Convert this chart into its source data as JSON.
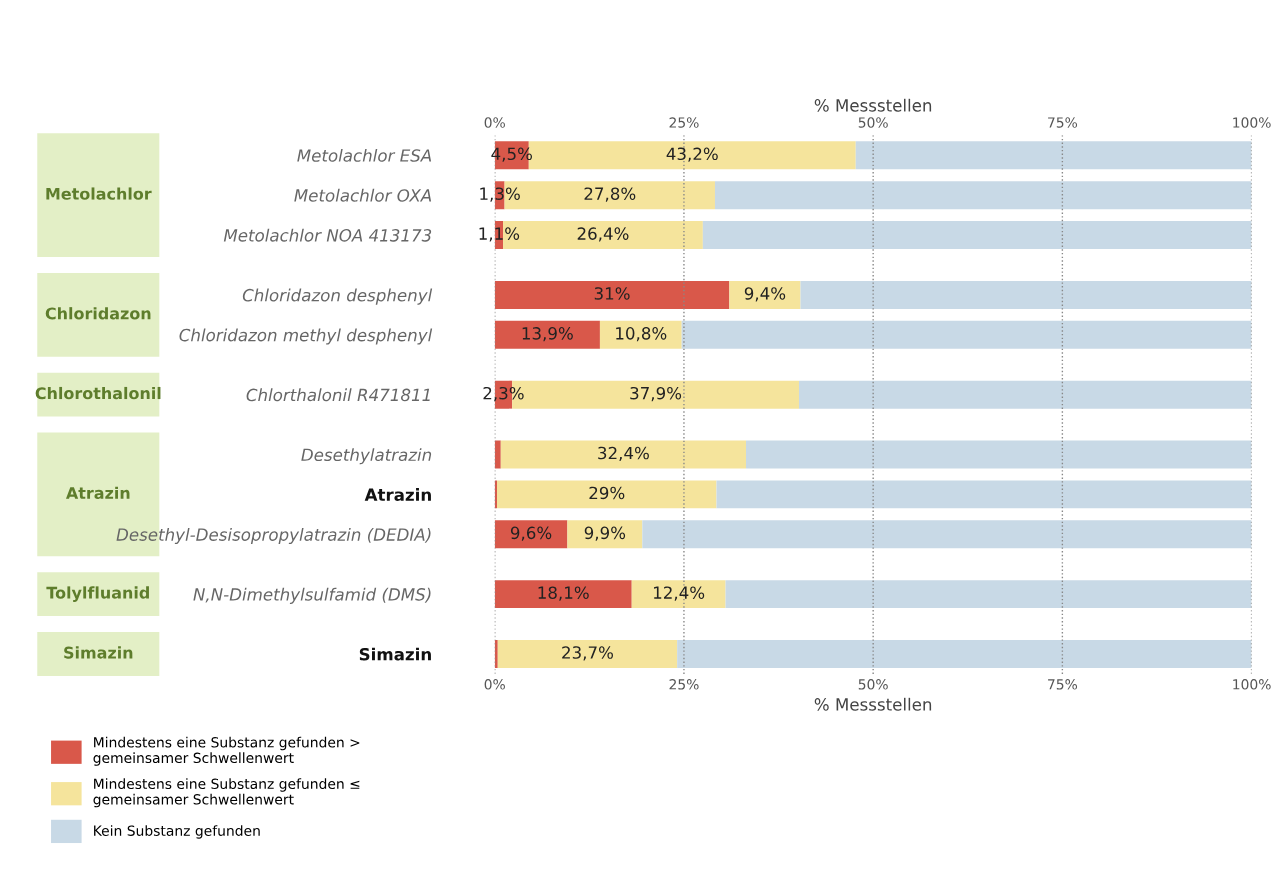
{
  "chart_data": {
    "type": "bar",
    "orientation": "horizontal",
    "stacked": true,
    "categories": [
      "Metolachlor ESA",
      "Metolachlor OXA",
      "Metolachlor NOA 413173",
      "Chloridazon desphenyl",
      "Chloridazon methyl desphenyl",
      "Chlorthalonil R471811",
      "Desethylatrazin",
      "Atrazin",
      "Desethyl-Desisopropylatrazin (DEDIA)",
      "N,N-Dimethylsulfamid (DMS)",
      "Simazin"
    ],
    "series": [
      {
        "name": "Mindestens eine Substanz gefunden >\ngemeinsamer Schwellenwert",
        "color": "#d9584a",
        "values": [
          4.5,
          1.3,
          1.1,
          31,
          13.9,
          2.3,
          0.8,
          0.3,
          9.6,
          18.1,
          0.4
        ],
        "value_labels": [
          "4,5%",
          "1,3%",
          "1,1%",
          "31%",
          "13,9%",
          "2,3%",
          null,
          null,
          "9,6%",
          "18,1%",
          null
        ]
      },
      {
        "name": "Mindestens eine Substanz gefunden ≤\ngemeinsamer Schwellenwert",
        "color": "#f5e49c",
        "values": [
          43.2,
          27.8,
          26.4,
          9.4,
          10.8,
          37.9,
          32.4,
          29,
          9.9,
          12.4,
          23.7
        ],
        "value_labels": [
          "43,2%",
          "27,8%",
          "26,4%",
          "9,4%",
          "10,8%",
          "37,9%",
          "32,4%",
          "29%",
          "9,9%",
          "12,4%",
          "23,7%"
        ]
      },
      {
        "name": "Kein Substanz gefunden",
        "color": "#c8d9e6",
        "values": [
          52.3,
          70.9,
          72.5,
          59.6,
          75.3,
          59.8,
          66.8,
          70.7,
          80.5,
          69.5,
          75.9
        ]
      }
    ],
    "xlim": [
      0,
      100
    ],
    "xticks": [
      {
        "value": 0,
        "label": "0%"
      },
      {
        "value": 25,
        "label": "25%"
      },
      {
        "value": 50,
        "label": "50%"
      },
      {
        "value": 75,
        "label": "75%"
      },
      {
        "value": 100,
        "label": "100%"
      }
    ],
    "x2lim": [
      0,
      100
    ],
    "x2ticks": [
      {
        "value": 0,
        "label": "0%"
      },
      {
        "value": 25,
        "label": "25%"
      },
      {
        "value": 50,
        "label": "50%"
      },
      {
        "value": 75,
        "label": "75%"
      },
      {
        "value": 100,
        "label": "100%"
      }
    ],
    "xlabel": "% Messstellen",
    "x2label": "% Messstellen",
    "annotations": [
      "Metolachlor",
      "Chloridazon",
      "Chlorothalonil",
      "Atrazin",
      "Tolylfluanid",
      "Simazin"
    ],
    "grid": "x",
    "legend": "bottom left"
  }
}
